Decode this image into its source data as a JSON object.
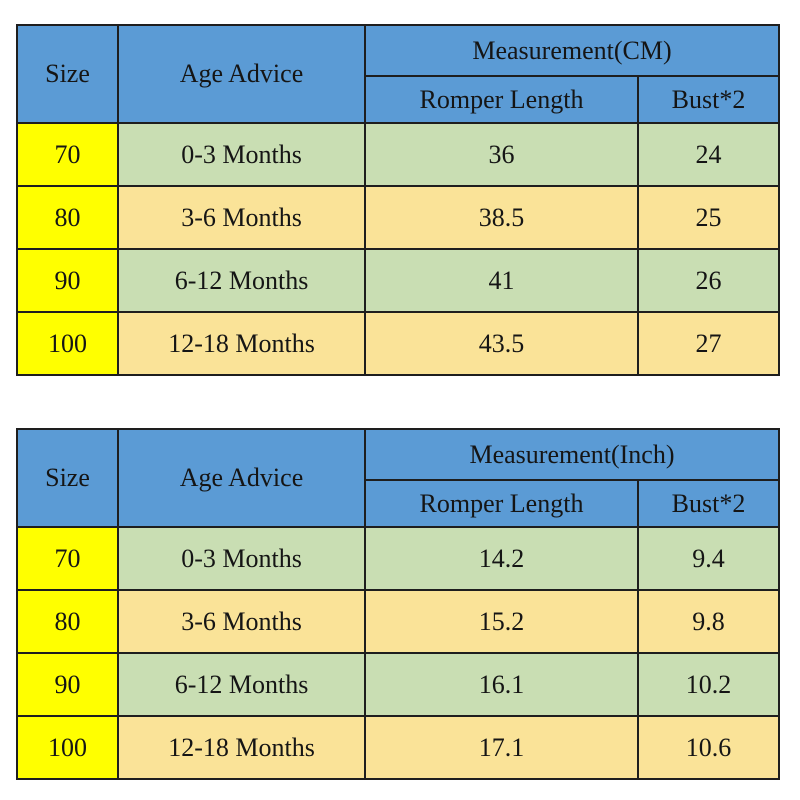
{
  "page": {
    "background": "#ffffff"
  },
  "colors": {
    "header_blue": "#5b9bd5",
    "size_yellow": "#ffff00",
    "row_green": "#c9deb3",
    "row_tan": "#fae398",
    "border": "#1e1e1e",
    "header_text": "#10243a",
    "body_text": "#151515"
  },
  "chart_data": [
    {
      "type": "table",
      "title": "Measurement(CM)",
      "header": {
        "size": "Size",
        "age": "Age Advice",
        "measurement": "Measurement(CM)",
        "sub_col1": "Romper Length",
        "sub_col2": "Bust*2"
      },
      "rows": [
        {
          "size": "70",
          "age": "0-3 Months",
          "romper_length": "36",
          "bust2": "24"
        },
        {
          "size": "80",
          "age": "3-6 Months",
          "romper_length": "38.5",
          "bust2": "25"
        },
        {
          "size": "90",
          "age": "6-12 Months",
          "romper_length": "41",
          "bust2": "26"
        },
        {
          "size": "100",
          "age": "12-18 Months",
          "romper_length": "43.5",
          "bust2": "27"
        }
      ]
    },
    {
      "type": "table",
      "title": "Measurement(Inch)",
      "header": {
        "size": "Size",
        "age": "Age Advice",
        "measurement": "Measurement(Inch)",
        "sub_col1": "Romper Length",
        "sub_col2": "Bust*2"
      },
      "rows": [
        {
          "size": "70",
          "age": "0-3 Months",
          "romper_length": "14.2",
          "bust2": "9.4"
        },
        {
          "size": "80",
          "age": "3-6 Months",
          "romper_length": "15.2",
          "bust2": "9.8"
        },
        {
          "size": "90",
          "age": "6-12 Months",
          "romper_length": "16.1",
          "bust2": "10.2"
        },
        {
          "size": "100",
          "age": "12-18 Months",
          "romper_length": "17.1",
          "bust2": "10.6"
        }
      ]
    }
  ]
}
